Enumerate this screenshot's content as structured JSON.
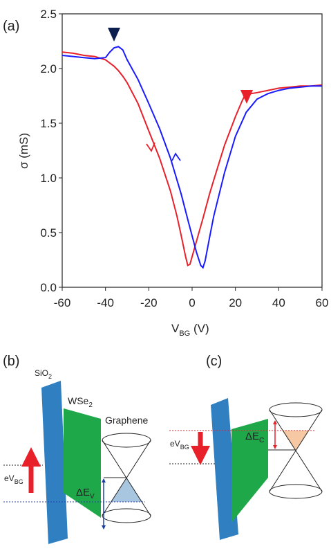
{
  "chart_data": {
    "type": "line",
    "x_label": {
      "text": "V",
      "sub": "BG",
      "suffix": " (V)"
    },
    "y_label": "σ (mS)",
    "xlim": [
      -60,
      60
    ],
    "xticks": [
      -60,
      -40,
      -20,
      0,
      20,
      40,
      60
    ],
    "ylim": [
      0,
      2.5
    ],
    "yticks": [
      {
        "value": 0,
        "label": "0.0"
      },
      0.5,
      {
        "value": 1,
        "label": "1.0"
      },
      1.5,
      {
        "value": 2,
        "label": "2.0"
      },
      2.5
    ],
    "series": [
      {
        "color": "#e8202a",
        "x": [
          -60,
          -55,
          -50,
          -45,
          -40,
          -38,
          -36,
          -34,
          -32,
          -30,
          -25,
          -20,
          -15,
          -10,
          -7,
          -5,
          -3,
          -2,
          -1,
          0,
          2,
          5,
          8,
          10,
          15,
          20,
          23,
          25,
          27,
          30,
          35,
          40,
          45,
          50,
          55,
          60
        ],
        "values": [
          2.15,
          2.14,
          2.12,
          2.11,
          2.08,
          2.05,
          2.02,
          1.98,
          1.93,
          1.87,
          1.68,
          1.43,
          1.18,
          0.88,
          0.65,
          0.47,
          0.28,
          0.2,
          0.21,
          0.28,
          0.42,
          0.63,
          0.85,
          0.98,
          1.3,
          1.56,
          1.7,
          1.78,
          1.77,
          1.78,
          1.8,
          1.82,
          1.83,
          1.84,
          1.84,
          1.85
        ]
      },
      {
        "color": "#1a1aff",
        "x": [
          -60,
          -55,
          -50,
          -45,
          -40,
          -38,
          -36,
          -34,
          -32,
          -30,
          -25,
          -20,
          -15,
          -10,
          -5,
          -2,
          0,
          2,
          4,
          5,
          6,
          8,
          10,
          15,
          20,
          25,
          30,
          35,
          40,
          45,
          50,
          55,
          60
        ],
        "values": [
          2.12,
          2.11,
          2.1,
          2.09,
          2.1,
          2.15,
          2.19,
          2.2,
          2.17,
          2.08,
          1.9,
          1.68,
          1.45,
          1.18,
          0.85,
          0.62,
          0.47,
          0.32,
          0.2,
          0.18,
          0.24,
          0.45,
          0.65,
          1.05,
          1.38,
          1.6,
          1.72,
          1.77,
          1.8,
          1.82,
          1.83,
          1.84,
          1.84
        ]
      }
    ]
  },
  "panel_labels": [
    "(a)",
    "(b)",
    "(c)"
  ],
  "diagram_b": {
    "oxide": {
      "text": "SiO",
      "sub": "2"
    },
    "wse2": {
      "text": "WSe",
      "sub": "2"
    },
    "graphene": "Graphene",
    "bias": {
      "text": "eV",
      "sub": "BG"
    },
    "offset": {
      "text": "ΔE",
      "sub": "V"
    }
  },
  "diagram_c": {
    "bias": {
      "text": "eV",
      "sub": "BG"
    },
    "offset": {
      "text": "ΔE",
      "sub": "C"
    }
  }
}
